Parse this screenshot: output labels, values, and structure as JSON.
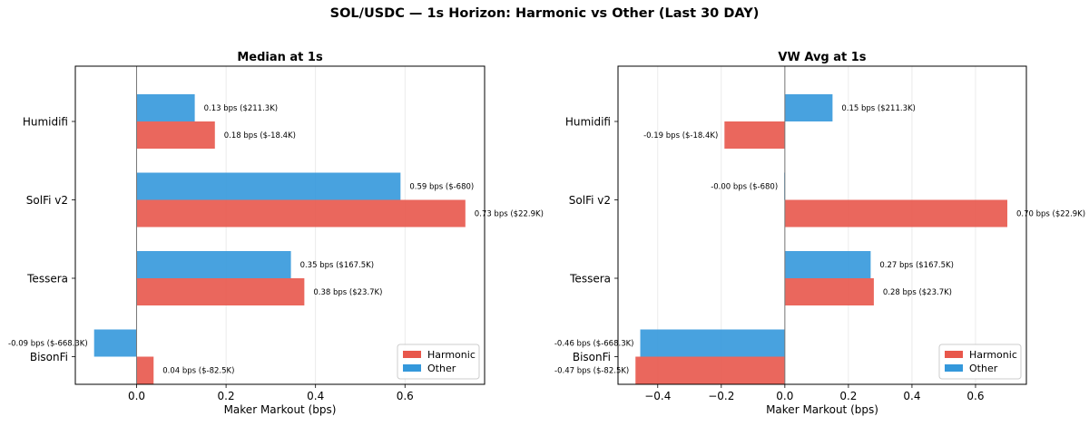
{
  "figure": {
    "suptitle": "SOL/USDC — 1s Horizon: Harmonic vs Other (Last 30 DAY)"
  },
  "colors": {
    "harmonic": "#e8574b",
    "other": "#3498db"
  },
  "chart_data": [
    {
      "type": "bar",
      "orientation": "horizontal",
      "title": "Median at 1s",
      "xlabel": "Maker Markout (bps)",
      "ylabel": "",
      "categories": [
        "Humidifi",
        "SolFi v2",
        "Tessera",
        "BisonFi"
      ],
      "series": [
        {
          "name": "Harmonic",
          "values": [
            0.175,
            0.735,
            0.375,
            0.038
          ],
          "labels": [
            "0.18 bps ($-18.4K)",
            "0.73 bps ($22.9K)",
            "0.38 bps ($23.7K)",
            "0.04 bps ($-82.5K)"
          ]
        },
        {
          "name": "Other",
          "values": [
            0.13,
            0.59,
            0.345,
            -0.095
          ],
          "labels": [
            "0.13 bps ($211.3K)",
            "0.59 bps ($-680)",
            "0.35 bps ($167.5K)",
            "-0.09 bps ($-668.3K)"
          ]
        }
      ],
      "xlim": [
        -0.137,
        0.778
      ],
      "xticks": [
        0.0,
        0.2,
        0.4,
        0.6
      ],
      "xtick_labels": [
        "0.0",
        "0.2",
        "0.4",
        "0.6"
      ],
      "grid": "vertical",
      "legend": "lower-right"
    },
    {
      "type": "bar",
      "orientation": "horizontal",
      "title": "VW Avg at 1s",
      "xlabel": "Maker Markout (bps)",
      "ylabel": "",
      "categories": [
        "Humidifi",
        "SolFi v2",
        "Tessera",
        "BisonFi"
      ],
      "series": [
        {
          "name": "Harmonic",
          "values": [
            -0.19,
            0.7,
            0.28,
            -0.47
          ],
          "labels": [
            "-0.19 bps ($-18.4K)",
            "0.70 bps ($22.9K)",
            "0.28 bps ($23.7K)",
            "-0.47 bps ($-82.5K)"
          ]
        },
        {
          "name": "Other",
          "values": [
            0.15,
            -0.002,
            0.27,
            -0.455
          ],
          "labels": [
            "0.15 bps ($211.3K)",
            "-0.00 bps ($-680)",
            "0.27 bps ($167.5K)",
            "-0.46 bps ($-668.3K)"
          ]
        }
      ],
      "xlim": [
        -0.525,
        0.76
      ],
      "xticks": [
        -0.4,
        -0.2,
        0.0,
        0.2,
        0.4,
        0.6
      ],
      "xtick_labels": [
        "−0.4",
        "−0.2",
        "0.0",
        "0.2",
        "0.4",
        "0.6"
      ],
      "grid": "vertical",
      "legend": "lower-right"
    }
  ]
}
